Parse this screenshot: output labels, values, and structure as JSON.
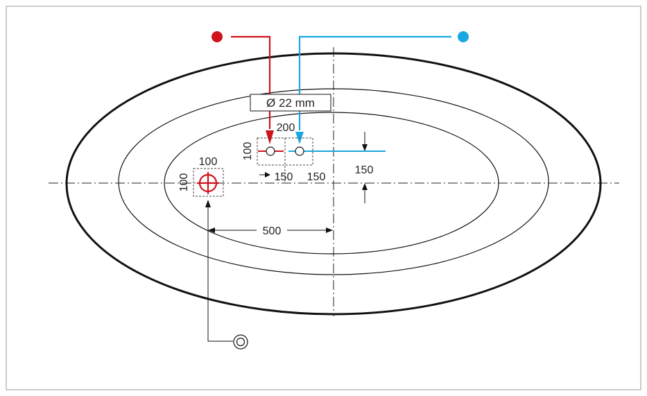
{
  "diagram": {
    "pipe_diameter_label": "Ø 22 mm",
    "dim_offset_top": "200",
    "dim_box_small": "100",
    "dim_left_150": "150",
    "dim_right_150": "150",
    "dim_vertical_150": "150",
    "dim_drain_box_w": "100",
    "dim_drain_box_h": "100",
    "dim_drain_to_center": "500"
  },
  "colors": {
    "hot": "#d0121b",
    "cold": "#18a7e0",
    "line": "#111111",
    "frame": "#9a9a9a"
  },
  "icons": {
    "hot_supply": "red-dot-icon",
    "cold_supply": "blue-dot-icon",
    "drain": "drain-symbol-icon"
  }
}
